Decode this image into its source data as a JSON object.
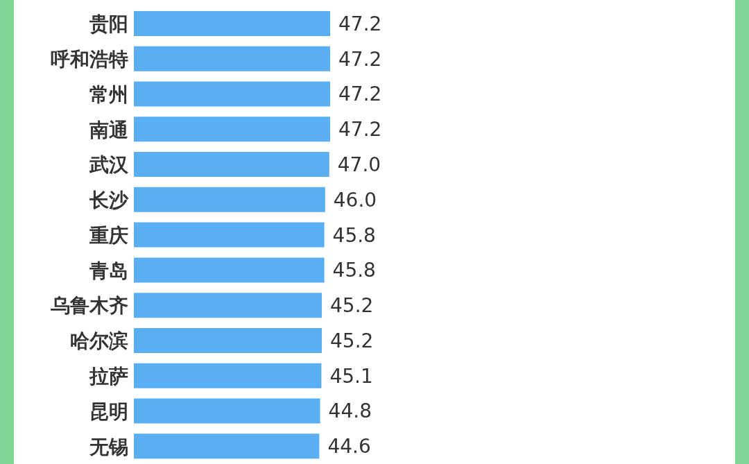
{
  "chart_data": {
    "type": "bar",
    "orientation": "horizontal",
    "categories": [
      "贵阳",
      "呼和浩特",
      "常州",
      "南通",
      "武汉",
      "长沙",
      "重庆",
      "青岛",
      "乌鲁木齐",
      "哈尔滨",
      "拉萨",
      "昆明",
      "无锡"
    ],
    "values": [
      47.2,
      47.2,
      47.2,
      47.2,
      47.0,
      46.0,
      45.8,
      45.8,
      45.2,
      45.2,
      45.1,
      44.8,
      44.6
    ],
    "value_labels": [
      "47.2",
      "47.2",
      "47.2",
      "47.2",
      "47.0",
      "46.0",
      "45.8",
      "45.8",
      "45.2",
      "45.2",
      "45.1",
      "44.8",
      "44.6"
    ],
    "color": "#5aaef2",
    "grid": false,
    "legend": false
  }
}
